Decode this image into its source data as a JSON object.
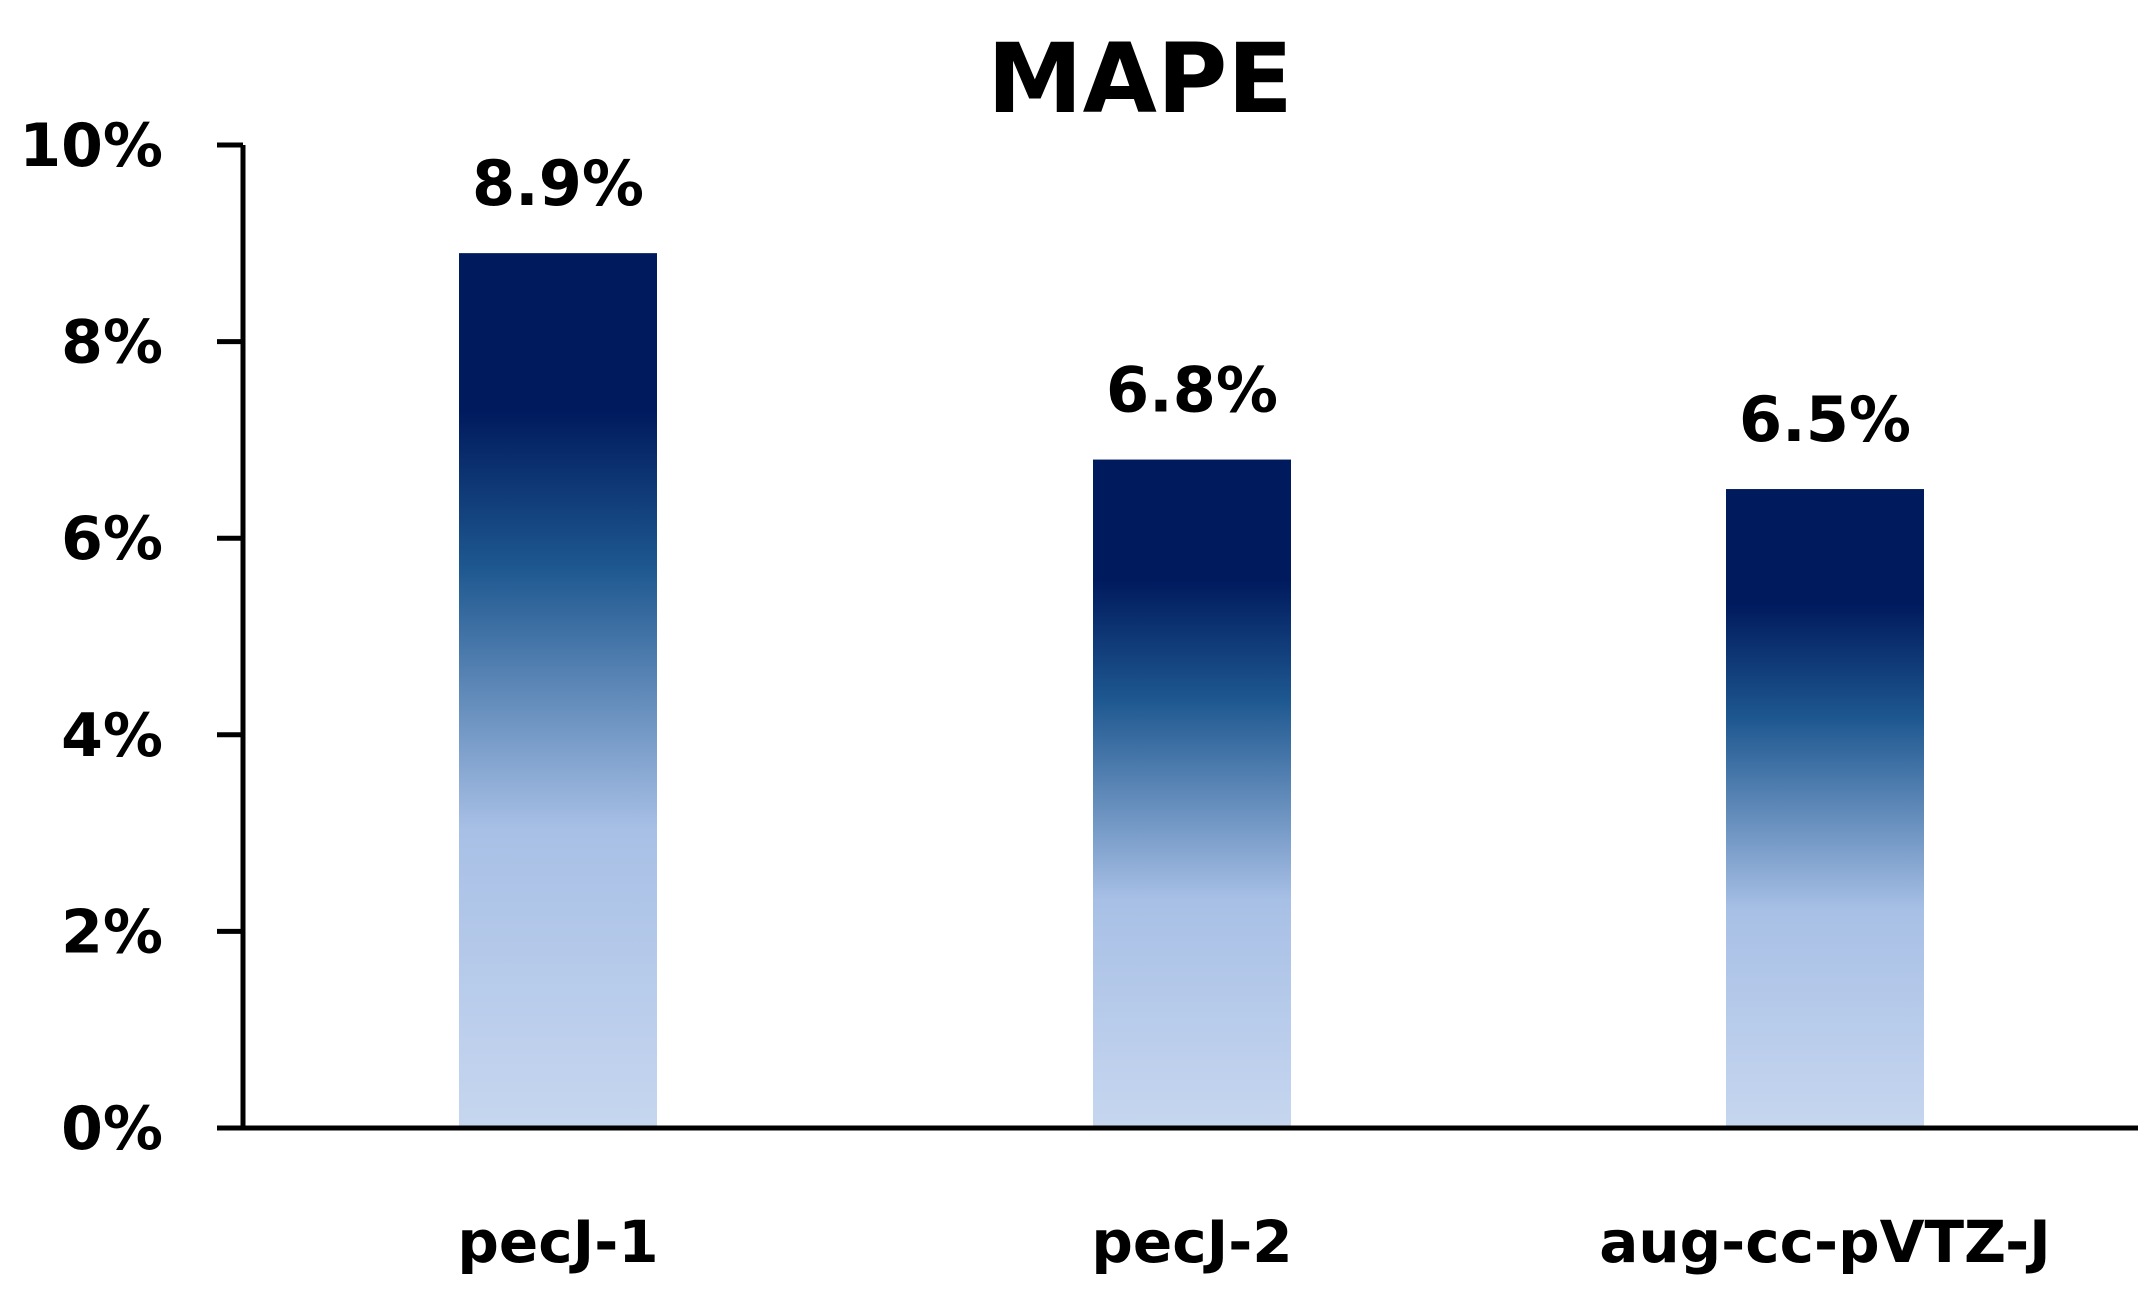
{
  "chart_data": {
    "type": "bar",
    "title": "MAPE",
    "categories": [
      "pecJ-1",
      "pecJ-2",
      "aug-cc-pVTZ-J"
    ],
    "values": [
      8.9,
      6.8,
      6.5
    ],
    "data_labels": [
      "8.9%",
      "6.8%",
      "6.5%"
    ],
    "ylim": [
      0,
      10
    ],
    "yticks": [
      0,
      2,
      4,
      6,
      8,
      10
    ],
    "ytick_labels": [
      "0%",
      "2%",
      "4%",
      "6%",
      "8%",
      "10%"
    ],
    "xlabel": "",
    "ylabel": "",
    "grid": false,
    "legend": "none",
    "colors": {
      "bar_top": "#001a5e",
      "bar_mid": "#1e5890",
      "bar_light": "#a8c0e6",
      "bar_bottom": "#c6d6ef",
      "axis": "#000000"
    }
  }
}
